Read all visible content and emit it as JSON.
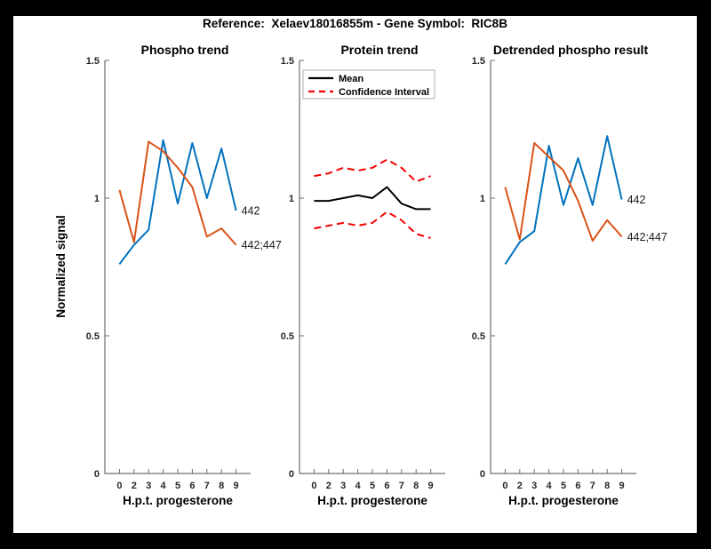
{
  "figure": {
    "title": "Reference:  Xelaev18016855m - Gene Symbol:  RIC8B",
    "background": "#000000",
    "canvas_color": "#ffffff"
  },
  "colors": {
    "blue": "#0072BD",
    "orange": "#D95319",
    "red": "#F40000",
    "black": "#000000",
    "axis_line": "#6e6e6e",
    "tick_text": "#262626",
    "legend_border": "#adadad"
  },
  "chart_data": [
    {
      "type": "line",
      "title": "Phospho trend",
      "xlabel": "H.p.t. progesterone",
      "ylabel": "Normalized signal",
      "x_ticks": [
        "0",
        "2",
        "3",
        "4",
        "5",
        "6",
        "7",
        "8",
        "9"
      ],
      "y_ticks": [
        "0",
        "0.5",
        "1",
        "1.5"
      ],
      "ylim": [
        0,
        1.5
      ],
      "grid": false,
      "series": [
        {
          "name": "442",
          "color": "#0072BD",
          "style": "solid",
          "end_label": "442",
          "values": [
            0.76,
            0.83,
            0.885,
            1.21,
            0.98,
            1.2,
            1.0,
            1.18,
            0.955
          ]
        },
        {
          "name": "442;447",
          "color": "#D95319",
          "style": "solid",
          "end_label": "442;447",
          "values": [
            1.03,
            0.84,
            1.205,
            1.17,
            1.11,
            1.04,
            0.86,
            0.89,
            0.83
          ]
        }
      ]
    },
    {
      "type": "line",
      "title": "Protein trend",
      "xlabel": "H.p.t. progesterone",
      "ylabel": "",
      "x_ticks": [
        "0",
        "2",
        "3",
        "4",
        "5",
        "6",
        "7",
        "8",
        "9"
      ],
      "y_ticks": [
        "0",
        "0.5",
        "1",
        "1.5"
      ],
      "ylim": [
        0,
        1.5
      ],
      "grid": false,
      "legend_position": "top-left",
      "legend": [
        {
          "label": "Mean",
          "color": "#000000",
          "style": "solid"
        },
        {
          "label": "Confidence Interval",
          "color": "#F40000",
          "style": "dashed"
        }
      ],
      "series": [
        {
          "name": "Mean",
          "color": "#000000",
          "style": "solid",
          "values": [
            0.99,
            0.99,
            1.0,
            1.01,
            1.0,
            1.04,
            0.98,
            0.96,
            0.96
          ]
        },
        {
          "name": "Confidence Interval upper",
          "color": "#F40000",
          "style": "dashed",
          "values": [
            1.08,
            1.09,
            1.11,
            1.1,
            1.11,
            1.14,
            1.11,
            1.06,
            1.08
          ]
        },
        {
          "name": "Confidence Interval lower",
          "color": "#F40000",
          "style": "dashed",
          "values": [
            0.89,
            0.9,
            0.91,
            0.9,
            0.91,
            0.95,
            0.92,
            0.87,
            0.855
          ]
        }
      ]
    },
    {
      "type": "line",
      "title": "Detrended phospho result",
      "xlabel": "H.p.t. progesterone",
      "ylabel": "",
      "x_ticks": [
        "0",
        "2",
        "3",
        "4",
        "5",
        "6",
        "7",
        "8",
        "9"
      ],
      "y_ticks": [
        "0",
        "0.5",
        "1",
        "1.5"
      ],
      "ylim": [
        0,
        1.5
      ],
      "grid": false,
      "series": [
        {
          "name": "442",
          "color": "#0072BD",
          "style": "solid",
          "end_label": "442",
          "values": [
            0.76,
            0.84,
            0.88,
            1.19,
            0.975,
            1.145,
            0.975,
            1.225,
            0.995
          ]
        },
        {
          "name": "442;447",
          "color": "#D95319",
          "style": "solid",
          "end_label": "442;447",
          "values": [
            1.04,
            0.85,
            1.2,
            1.15,
            1.1,
            0.99,
            0.845,
            0.92,
            0.86
          ]
        }
      ]
    }
  ]
}
